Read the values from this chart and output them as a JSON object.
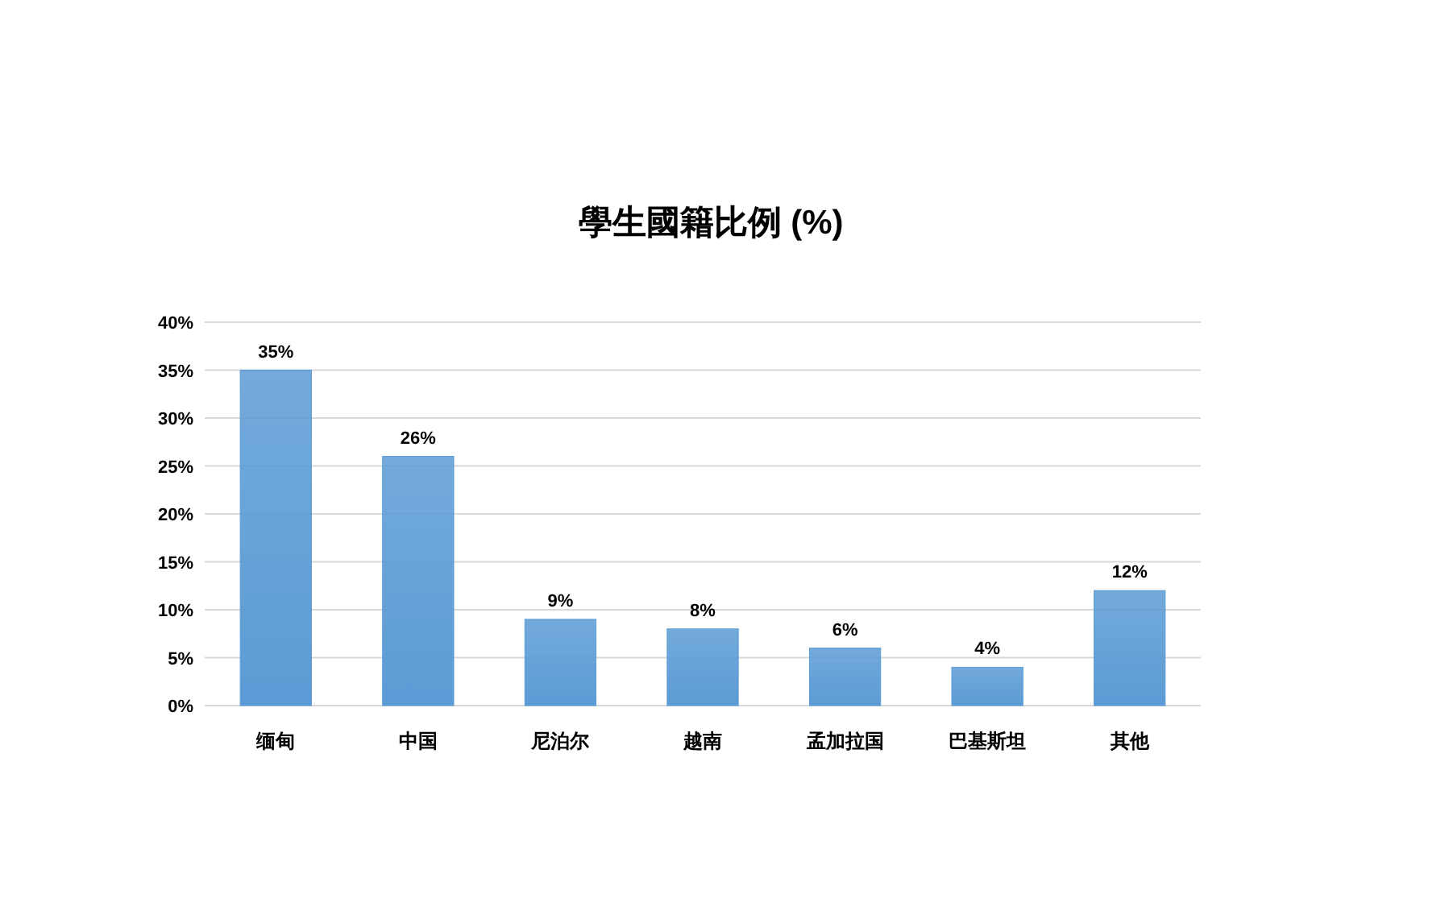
{
  "chart_data": {
    "type": "bar",
    "title": "學生國籍比例 (%)",
    "categories": [
      "缅甸",
      "中国",
      "尼泊尔",
      "越南",
      "孟加拉国",
      "巴基斯坦",
      "其他"
    ],
    "values": [
      35,
      26,
      9,
      8,
      6,
      4,
      12
    ],
    "value_labels": [
      "35%",
      "26%",
      "9%",
      "8%",
      "6%",
      "4%",
      "12%"
    ],
    "color": "#5b9bd5",
    "ylim": [
      0,
      40
    ],
    "yticks": [
      {
        "value": 0,
        "label": "0%"
      },
      {
        "value": 5,
        "label": "5%"
      },
      {
        "value": 10,
        "label": "10%"
      },
      {
        "value": 15,
        "label": "15%"
      },
      {
        "value": 20,
        "label": "20%"
      },
      {
        "value": 25,
        "label": "25%"
      },
      {
        "value": 30,
        "label": "30%"
      },
      {
        "value": 35,
        "label": "35%"
      },
      {
        "value": 40,
        "label": "40%"
      }
    ],
    "grid": "y"
  }
}
